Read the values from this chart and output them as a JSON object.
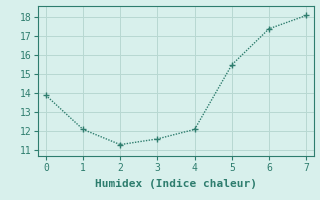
{
  "x": [
    0,
    1,
    2,
    3,
    4,
    5,
    6,
    7
  ],
  "y": [
    13.9,
    12.1,
    11.3,
    11.6,
    12.1,
    15.5,
    17.4,
    18.1
  ],
  "xlabel": "Humidex (Indice chaleur)",
  "xlim": [
    -0.2,
    7.2
  ],
  "ylim": [
    10.7,
    18.6
  ],
  "yticks": [
    11,
    12,
    13,
    14,
    15,
    16,
    17,
    18
  ],
  "xticks": [
    0,
    1,
    2,
    3,
    4,
    5,
    6,
    7
  ],
  "line_color": "#2e7d6e",
  "marker": "+",
  "marker_size": 4,
  "bg_color": "#d8f0ec",
  "grid_color": "#b8d8d2",
  "xlabel_fontsize": 8,
  "tick_fontsize": 7,
  "line_width": 1.0
}
